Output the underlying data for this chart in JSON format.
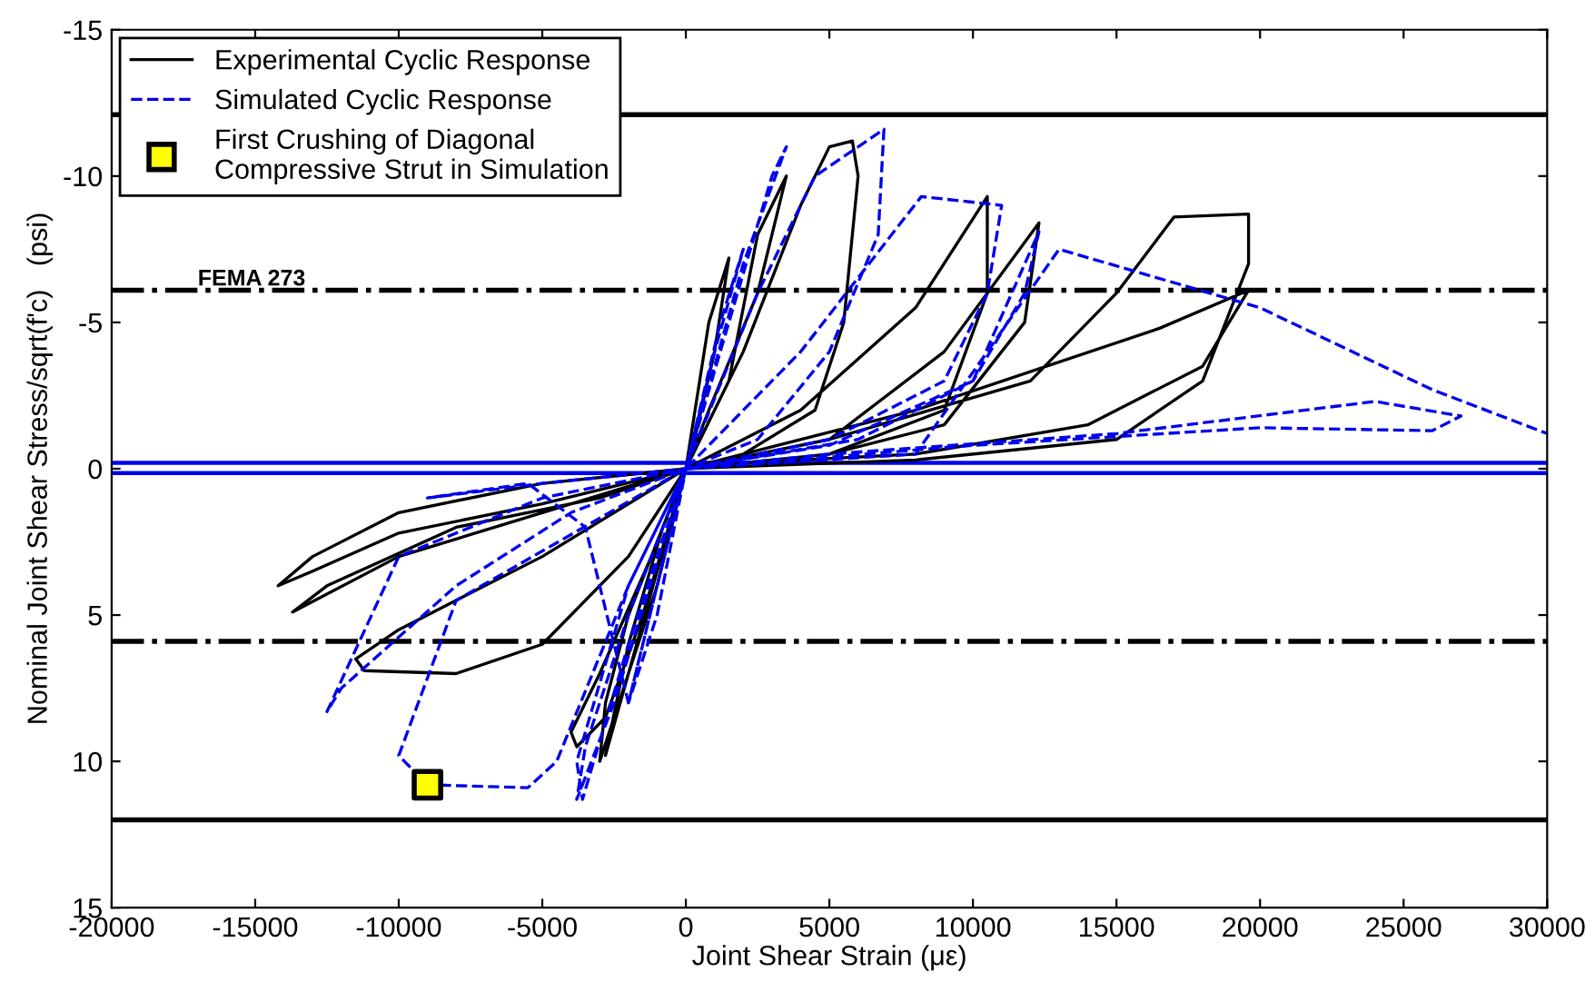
{
  "chart_data": {
    "type": "line",
    "xlabel": "Joint Shear Strain (με)",
    "ylabel": "Nominal Joint Shear Stress/sqrt(f'c)   (psi)",
    "xlim": [
      -20000,
      30000
    ],
    "xticks": [
      -20000,
      -15000,
      -10000,
      -5000,
      0,
      5000,
      10000,
      15000,
      20000,
      25000,
      30000
    ],
    "ylim": [
      15,
      -15
    ],
    "yticks": [
      -15,
      -10,
      -5,
      0,
      5,
      10,
      15
    ],
    "grid": false,
    "legend": "top left",
    "series": [
      {
        "name": "Experimental Cyclic Response",
        "line_style": "solid",
        "marker": "none",
        "color": "#000000",
        "x": [
          0,
          800,
          1500,
          1000,
          300,
          0,
          -1000,
          -2000,
          -2800,
          -2000,
          -800,
          0,
          1500,
          2500,
          3500,
          2500,
          800,
          0,
          -1500,
          -2800,
          -3800,
          -4000,
          -3000,
          -1200,
          0,
          2000,
          4000,
          5000,
          5800,
          6000,
          5500,
          4500,
          2000,
          0,
          -2000,
          -2800,
          -3000,
          -2000,
          0,
          4000,
          8000,
          10500,
          10500,
          9000,
          5000,
          0,
          -5000,
          -10000,
          -13000,
          -14200,
          -13000,
          -10000,
          -5000,
          0,
          5000,
          9000,
          12300,
          11800,
          9000,
          5000,
          0,
          -5000,
          -10000,
          -13700,
          -12500,
          -8000,
          -3000,
          0,
          5000,
          12000,
          15000,
          17000,
          19600,
          19600,
          18000,
          15000,
          8000,
          0,
          -5000,
          -10000,
          -11500,
          -11200,
          -8000,
          -5000,
          -2000,
          0,
          8000,
          16500,
          19600,
          18000,
          14000,
          8000,
          2000
        ],
        "values": [
          0,
          -5,
          -7.2,
          -4,
          -1,
          0,
          4,
          7,
          9.8,
          6,
          2,
          0,
          -3,
          -8,
          -10,
          -6,
          -2,
          0,
          5,
          8.5,
          9.5,
          9,
          7,
          3,
          0,
          -4,
          -9,
          -11,
          -11.2,
          -10,
          -5,
          -2,
          -0.5,
          0,
          5,
          8,
          10,
          7,
          0,
          -2,
          -5.5,
          -9.3,
          -6,
          -2,
          -0.5,
          0,
          1.2,
          2.2,
          3.5,
          4.0,
          3.0,
          1.5,
          0.5,
          0,
          -1,
          -4,
          -8.4,
          -5,
          -1.5,
          -0.5,
          0,
          1.5,
          3.0,
          4.9,
          4.0,
          2.0,
          1.0,
          0,
          -1,
          -3,
          -6,
          -8.6,
          -8.7,
          -7,
          -3,
          -1,
          -0.3,
          0,
          3,
          5.5,
          6.5,
          6.9,
          7.0,
          6.0,
          3,
          0,
          -2,
          -4.8,
          -6.1,
          -3.5,
          -1.5,
          -0.5,
          -0.2
        ]
      },
      {
        "name": "Simulated Cyclic Response",
        "line_style": "dashed",
        "marker": "none",
        "color": "#0000ee",
        "x": [
          0,
          1000,
          2000,
          1200,
          0,
          -1000,
          -2000,
          -1000,
          0,
          1500,
          3000,
          3500,
          2000,
          0,
          -2000,
          -3500,
          -3800,
          -2500,
          0,
          2500,
          4500,
          6900,
          6700,
          5000,
          2500,
          0,
          -2000,
          -3800,
          -3600,
          -2000,
          0,
          4000,
          8200,
          11000,
          10500,
          9000,
          5000,
          0,
          -5000,
          -10000,
          -12500,
          -12000,
          -8000,
          -4000,
          0,
          5000,
          10000,
          12300,
          11800,
          10000,
          6000,
          0,
          -5000,
          -9000,
          -5500,
          -3500,
          -2000,
          0,
          5000,
          15000,
          24000,
          27000,
          26000,
          20000,
          10000,
          0,
          -8000,
          -10000,
          -9000,
          -5500,
          -4500,
          -2000,
          0,
          8000,
          13000,
          20000,
          26000,
          30000
        ],
        "values": [
          0,
          -4,
          -7.5,
          -5,
          0,
          4,
          8,
          5,
          0,
          -5,
          -10,
          -11,
          -7,
          0,
          5,
          9.5,
          11.3,
          8,
          0,
          -6,
          -10,
          -11.6,
          -8,
          -4,
          -1,
          0,
          4,
          10,
          11.3,
          6,
          0,
          -4,
          -9.3,
          -9.0,
          -6,
          -3,
          -1,
          0,
          1.0,
          3.0,
          8.3,
          7.5,
          4.0,
          1.5,
          0,
          -0.8,
          -3,
          -8.1,
          -6,
          -3,
          -1,
          0,
          0.5,
          1.0,
          0.5,
          2.0,
          8.0,
          0,
          -0.5,
          -1.2,
          -2.3,
          -1.8,
          -1.3,
          -1.4,
          -0.8,
          0,
          4.5,
          9.8,
          10.8,
          10.9,
          10.0,
          4.0,
          0,
          -0.5,
          -7.5,
          -5.5,
          -2.7,
          -1.2
        ]
      },
      {
        "name": "First Crushing of Diagonal Compressive Strut in Simulation",
        "type": "scatter",
        "marker": "square",
        "color": "#ffff00",
        "x": [
          -9000
        ],
        "values": [
          10.8
        ]
      }
    ],
    "ref_lines": [
      {
        "axis": "y",
        "value": -12.1,
        "color": "#000000",
        "line_style": "solid"
      },
      {
        "axis": "y",
        "value": 12.0,
        "color": "#000000",
        "line_style": "solid"
      },
      {
        "axis": "y",
        "value": -6.1,
        "color": "#000000",
        "line_style": "dashdot",
        "label": "FEMA 273"
      },
      {
        "axis": "y",
        "value": 5.9,
        "color": "#000000",
        "line_style": "dashdot"
      },
      {
        "axis": "y",
        "value": -0.2,
        "color": "#0000ee",
        "line_style": "solid"
      },
      {
        "axis": "y",
        "value": 0.15,
        "color": "#0000ee",
        "line_style": "solid"
      }
    ]
  }
}
